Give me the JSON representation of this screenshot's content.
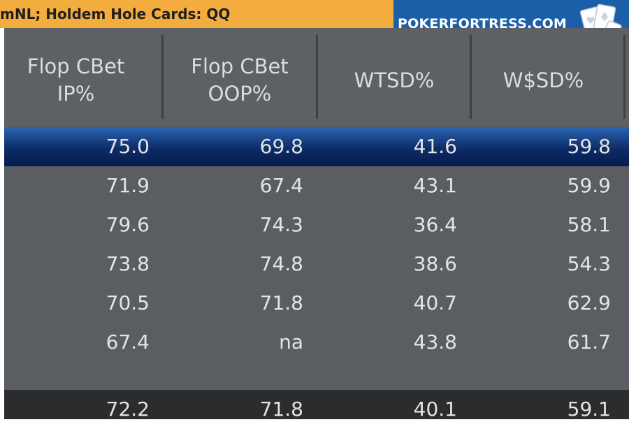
{
  "title": "mNL; Holdem Hole Cards: QQ",
  "brand": {
    "text": "POKERFORTRESS.COM",
    "logo_icon": "playing-cards-icon"
  },
  "columns": [
    {
      "line1": "Flop CBet",
      "line2": "IP%"
    },
    {
      "line1": "Flop CBet",
      "line2": "OOP%"
    },
    {
      "line1": "WTSD%",
      "line2": ""
    },
    {
      "line1": "W$SD%",
      "line2": ""
    }
  ],
  "rows": [
    [
      "75.0",
      "69.8",
      "41.6",
      "59.8"
    ],
    [
      "71.9",
      "67.4",
      "43.1",
      "59.9"
    ],
    [
      "79.6",
      "74.3",
      "36.4",
      "58.1"
    ],
    [
      "73.8",
      "74.8",
      "38.6",
      "54.3"
    ],
    [
      "70.5",
      "71.8",
      "40.7",
      "62.9"
    ],
    [
      "67.4",
      "na",
      "43.8",
      "61.7"
    ]
  ],
  "total": [
    "72.2",
    "71.8",
    "40.1",
    "59.1"
  ],
  "colors": {
    "title_bar": "#f3ad3f",
    "brand_bg": "#1a5fa8",
    "table_bg": "#5a5d61",
    "highlight_row": "#0d2c66",
    "total_row": "#2a2c2e"
  }
}
